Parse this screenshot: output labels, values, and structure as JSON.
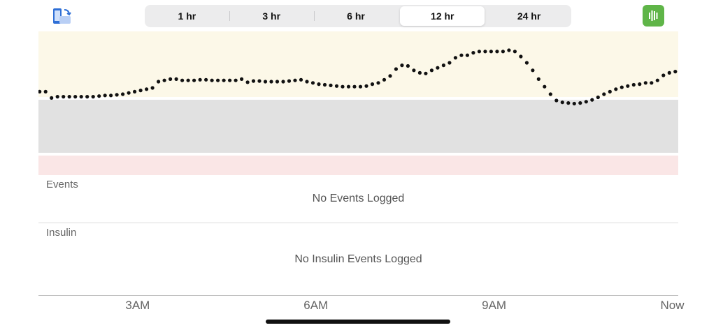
{
  "toolbar": {
    "rotate_icon": "phone-rotate-icon",
    "chart_icon": "bar-chart-icon",
    "chart_icon_color": "#5fb548"
  },
  "range_tabs": {
    "tabs": [
      "1 hr",
      "3 hr",
      "6 hr",
      "12 hr",
      "24 hr"
    ],
    "selected": "12 hr"
  },
  "chart_data": {
    "type": "scatter",
    "bands": {
      "high_color": "#fcf8e8",
      "target_color": "#e1e1e1",
      "low_color": "#fae6e6"
    },
    "x_ticks": [
      "3AM",
      "6AM",
      "9AM",
      "Now"
    ],
    "x_tick_hours": [
      3,
      6,
      9,
      12
    ],
    "x_range_hours": [
      1.33,
      12.1
    ],
    "y_range": [
      0,
      100
    ],
    "series": [
      {
        "points_xy": [
          [
            1.35,
            62
          ],
          [
            1.45,
            62
          ],
          [
            1.55,
            57
          ],
          [
            1.65,
            58
          ],
          [
            1.75,
            58
          ],
          [
            1.85,
            58
          ],
          [
            1.95,
            58
          ],
          [
            2.05,
            58
          ],
          [
            2.15,
            58
          ],
          [
            2.25,
            58
          ],
          [
            2.35,
            58.5
          ],
          [
            2.45,
            59
          ],
          [
            2.55,
            59
          ],
          [
            2.65,
            59.5
          ],
          [
            2.75,
            60
          ],
          [
            2.85,
            61
          ],
          [
            2.95,
            62
          ],
          [
            3.05,
            63
          ],
          [
            3.15,
            64
          ],
          [
            3.25,
            65
          ],
          [
            3.35,
            70
          ],
          [
            3.45,
            71
          ],
          [
            3.55,
            72
          ],
          [
            3.65,
            72
          ],
          [
            3.75,
            71
          ],
          [
            3.85,
            71
          ],
          [
            3.95,
            71
          ],
          [
            4.05,
            71.5
          ],
          [
            4.15,
            71.5
          ],
          [
            4.25,
            71
          ],
          [
            4.35,
            71
          ],
          [
            4.45,
            71
          ],
          [
            4.55,
            71
          ],
          [
            4.65,
            71
          ],
          [
            4.75,
            72
          ],
          [
            4.85,
            69.5
          ],
          [
            4.95,
            70.5
          ],
          [
            5.05,
            70.5
          ],
          [
            5.15,
            70
          ],
          [
            5.25,
            70
          ],
          [
            5.35,
            70
          ],
          [
            5.45,
            70
          ],
          [
            5.55,
            70.5
          ],
          [
            5.65,
            71
          ],
          [
            5.75,
            71.5
          ],
          [
            5.85,
            70
          ],
          [
            5.95,
            69
          ],
          [
            6.05,
            68
          ],
          [
            6.15,
            67.5
          ],
          [
            6.25,
            67
          ],
          [
            6.35,
            66.5
          ],
          [
            6.45,
            66
          ],
          [
            6.55,
            66
          ],
          [
            6.65,
            66
          ],
          [
            6.75,
            66
          ],
          [
            6.85,
            66.5
          ],
          [
            6.95,
            68
          ],
          [
            7.05,
            69
          ],
          [
            7.15,
            71.5
          ],
          [
            7.25,
            74.5
          ],
          [
            7.35,
            80
          ],
          [
            7.45,
            83
          ],
          [
            7.55,
            82.5
          ],
          [
            7.65,
            79
          ],
          [
            7.75,
            77
          ],
          [
            7.85,
            76.5
          ],
          [
            7.95,
            79
          ],
          [
            8.05,
            81
          ],
          [
            8.15,
            83
          ],
          [
            8.25,
            85
          ],
          [
            8.35,
            89
          ],
          [
            8.45,
            91
          ],
          [
            8.55,
            91
          ],
          [
            8.65,
            93
          ],
          [
            8.75,
            94
          ],
          [
            8.85,
            94
          ],
          [
            8.95,
            94
          ],
          [
            9.05,
            94
          ],
          [
            9.15,
            94
          ],
          [
            9.25,
            95
          ],
          [
            9.35,
            94
          ],
          [
            9.45,
            90
          ],
          [
            9.55,
            85
          ],
          [
            9.65,
            79
          ],
          [
            9.75,
            72
          ],
          [
            9.85,
            66
          ],
          [
            9.95,
            60
          ],
          [
            10.05,
            55
          ],
          [
            10.15,
            53.5
          ],
          [
            10.25,
            53
          ],
          [
            10.35,
            52.5
          ],
          [
            10.45,
            53
          ],
          [
            10.55,
            54
          ],
          [
            10.65,
            55.5
          ],
          [
            10.75,
            57.5
          ],
          [
            10.85,
            60
          ],
          [
            10.95,
            62
          ],
          [
            11.05,
            64
          ],
          [
            11.15,
            65.5
          ],
          [
            11.25,
            66.5
          ],
          [
            11.35,
            67.5
          ],
          [
            11.45,
            68
          ],
          [
            11.55,
            69
          ],
          [
            11.65,
            69
          ],
          [
            11.75,
            71
          ],
          [
            11.85,
            75
          ],
          [
            11.95,
            77
          ],
          [
            12.05,
            78
          ],
          [
            12.15,
            79
          ],
          [
            12.25,
            79
          ]
        ],
        "dot_color": "#111111"
      }
    ]
  },
  "events": {
    "header": "Events",
    "empty_message": "No Events Logged"
  },
  "insulin": {
    "header": "Insulin",
    "empty_message": "No Insulin Events Logged"
  }
}
